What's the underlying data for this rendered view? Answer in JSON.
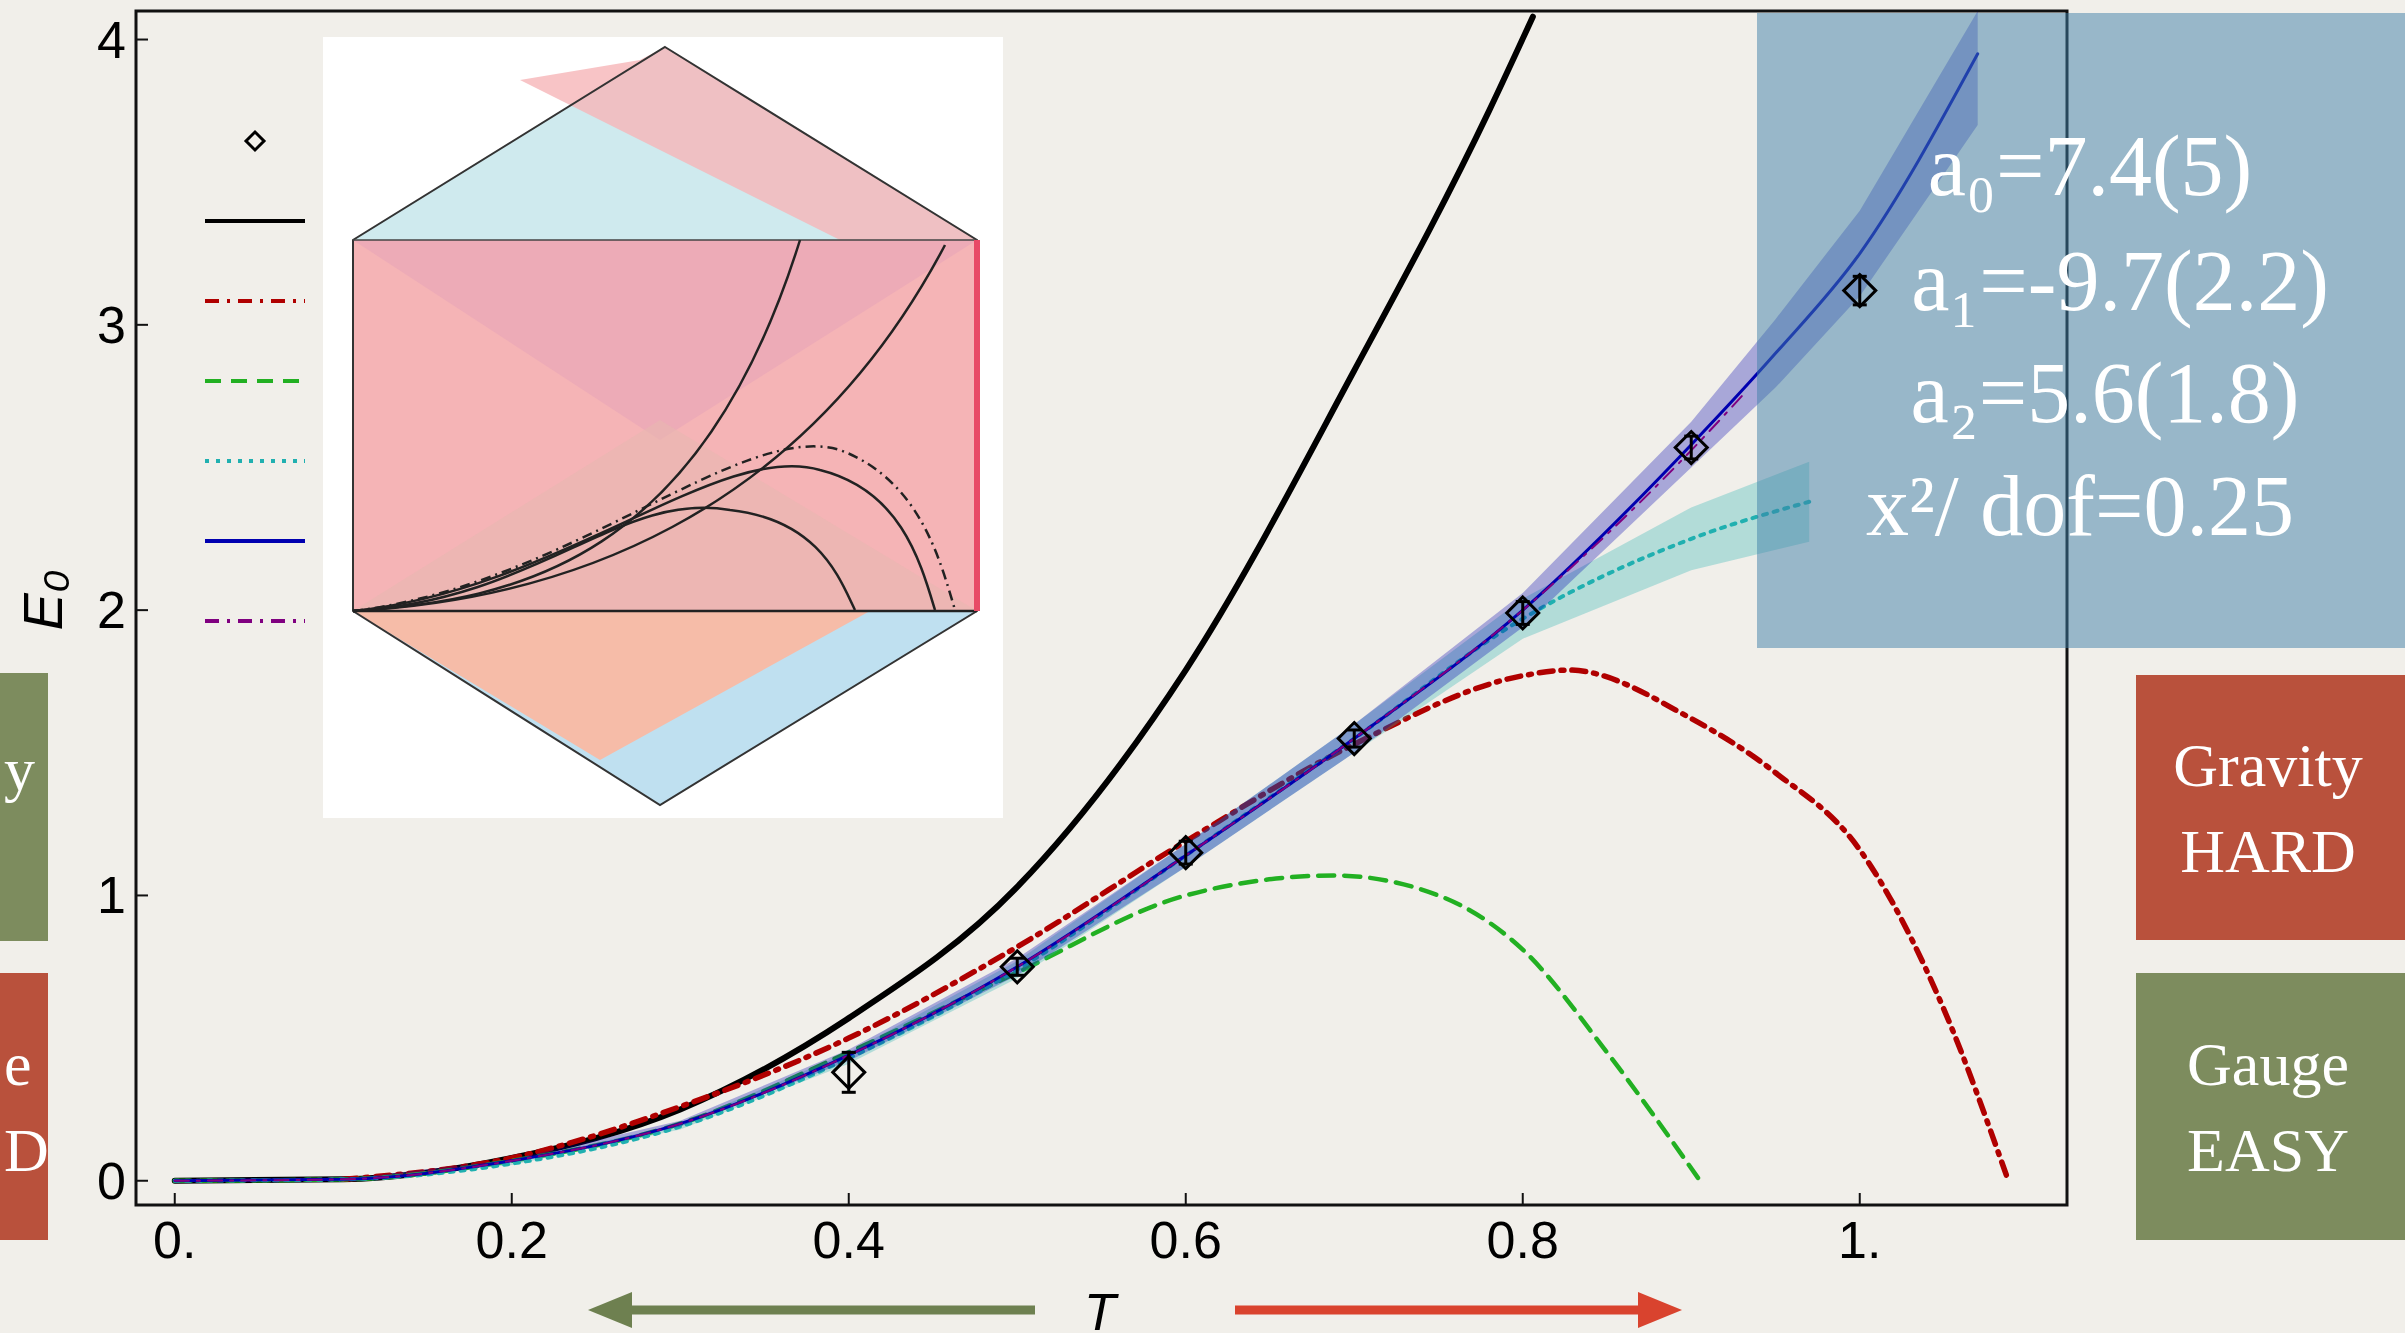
{
  "chart_data": {
    "type": "line",
    "xlabel": "T",
    "ylabel": "E₀",
    "xlim": [
      -0.023,
      1.123
    ],
    "ylim": [
      -0.085,
      4.1
    ],
    "xticks": [
      {
        "value": 0,
        "label": "0."
      },
      0.2,
      0.4,
      0.6,
      0.8,
      {
        "value": 1,
        "label": "1."
      }
    ],
    "yticks": [
      0,
      1,
      2,
      3,
      4
    ],
    "grid": false,
    "series": [
      {
        "type": "scatter",
        "marker": "diamond",
        "color": "#000000",
        "x": [
          0.4,
          0.5,
          0.6,
          0.7,
          0.8,
          0.9,
          1.0
        ],
        "values": [
          0.38,
          0.75,
          1.15,
          1.55,
          1.99,
          2.57,
          3.12
        ],
        "errors": [
          0.07,
          0.03,
          0.04,
          0.03,
          0.04,
          0.04,
          0.05
        ]
      },
      {
        "color": "#000000",
        "line_style": "solid",
        "x": [
          0,
          0.1,
          0.2,
          0.3,
          0.4,
          0.5,
          0.6,
          0.7,
          0.78,
          0.806
        ],
        "values": [
          0,
          0.005,
          0.08,
          0.25,
          0.57,
          1.03,
          1.79,
          2.84,
          3.75,
          4.08
        ]
      },
      {
        "color": "#b00000",
        "line_style": "dashdot",
        "x": [
          0.1,
          0.2,
          0.3,
          0.4,
          0.5,
          0.6,
          0.7,
          0.8,
          0.827,
          0.9,
          0.95,
          1.0,
          1.05,
          1.087
        ],
        "values": [
          0.005,
          0.08,
          0.26,
          0.5,
          0.82,
          1.19,
          1.53,
          1.77,
          1.79,
          1.62,
          1.43,
          1.16,
          0.6,
          0.02
        ]
      },
      {
        "color": "#22b022",
        "line_style": "dashed",
        "x": [
          0,
          0.1,
          0.2,
          0.3,
          0.4,
          0.5,
          0.6,
          0.688,
          0.75,
          0.8,
          0.85,
          0.904
        ],
        "values": [
          0,
          0.005,
          0.07,
          0.2,
          0.45,
          0.73,
          1.0,
          1.07,
          1.0,
          0.81,
          0.45,
          0.01
        ]
      },
      {
        "color": "#20b0b0",
        "line_style": "dotted",
        "x": [
          0,
          0.1,
          0.2,
          0.3,
          0.4,
          0.5,
          0.6,
          0.7,
          0.8,
          0.9,
          0.97
        ],
        "values": [
          0,
          0.005,
          0.06,
          0.19,
          0.43,
          0.74,
          1.14,
          1.55,
          1.97,
          2.25,
          2.38
        ],
        "lower": [
          0,
          0.004,
          0.055,
          0.18,
          0.41,
          0.71,
          1.1,
          1.5,
          1.9,
          2.14,
          2.24
        ],
        "upper": [
          0,
          0.006,
          0.065,
          0.2,
          0.45,
          0.77,
          1.18,
          1.6,
          2.04,
          2.36,
          2.52
        ]
      },
      {
        "color": "#0000b0",
        "line_style": "solid",
        "x": [
          0,
          0.1,
          0.2,
          0.3,
          0.4,
          0.5,
          0.6,
          0.7,
          0.8,
          0.9,
          0.95,
          1.0,
          1.07
        ],
        "values": [
          0,
          0.005,
          0.07,
          0.2,
          0.44,
          0.75,
          1.14,
          1.55,
          2.0,
          2.58,
          2.9,
          3.25,
          3.95
        ],
        "lower": [
          0,
          0.004,
          0.065,
          0.19,
          0.42,
          0.72,
          1.1,
          1.5,
          1.94,
          2.5,
          2.78,
          3.1,
          3.7
        ],
        "upper": [
          0,
          0.006,
          0.075,
          0.21,
          0.46,
          0.78,
          1.18,
          1.6,
          2.06,
          2.66,
          3.02,
          3.4,
          4.1
        ]
      },
      {
        "color": "#800080",
        "line_style": "dashdot",
        "x": [
          0,
          0.1,
          0.2,
          0.3,
          0.4,
          0.5,
          0.6,
          0.7,
          0.8,
          0.9,
          0.93
        ],
        "values": [
          0,
          0.005,
          0.07,
          0.2,
          0.44,
          0.75,
          1.14,
          1.55,
          2.0,
          2.56,
          2.75
        ]
      }
    ],
    "annotations": [
      "a₀=7.4(5)",
      "a₁=-9.7(2.2)",
      "a₂=5.6(1.8)",
      "x²/ dof=0.25",
      "Gravity\nHARD",
      "Gauge\nEASY",
      "y",
      "e\nD"
    ]
  }
}
